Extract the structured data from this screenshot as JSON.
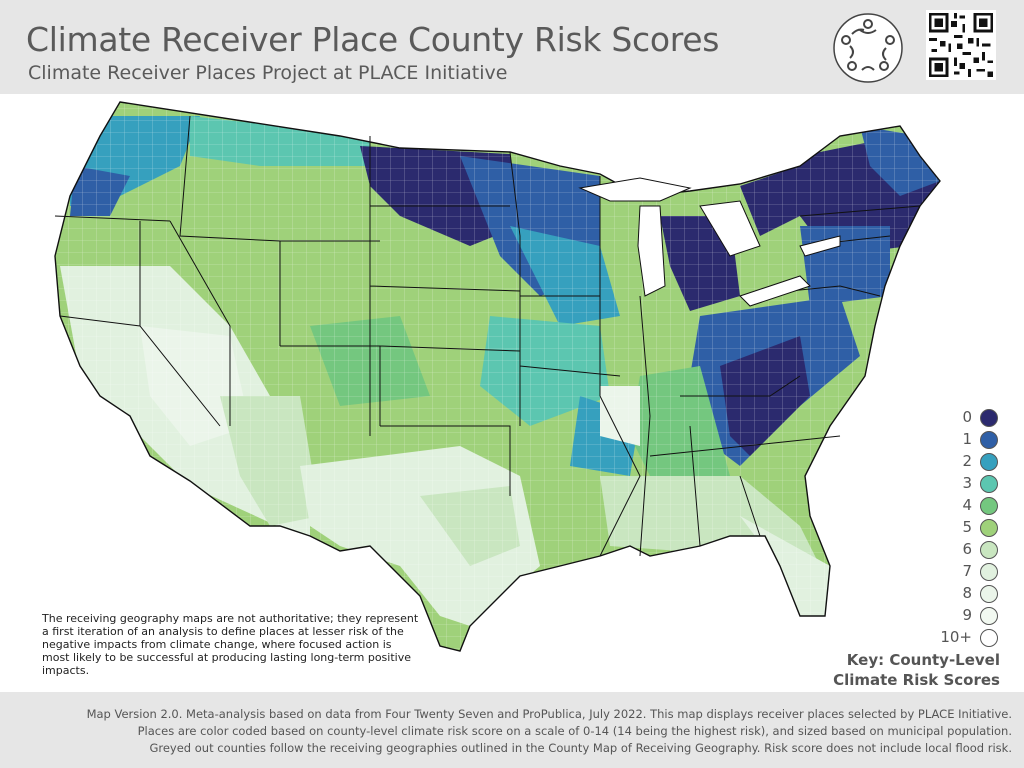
{
  "header": {
    "title": "Climate Receiver Place County Risk Scores",
    "subtitle": "Climate Receiver Places Project at PLACE Initiative"
  },
  "icons": {
    "logo": "place-initiative-logo-icon",
    "qr": "qr-code-icon"
  },
  "note": "The receiving geography maps are not authoritative; they represent a first iteration of an analysis to define places at lesser risk of the negative impacts from climate change, where focused action is most likely to be successful at producing lasting long-term positive impacts.",
  "legend": {
    "title_line1": "Key: County-Level",
    "title_line2": "Climate Risk Scores",
    "items": [
      {
        "label": "0",
        "color": "#2b2a6e"
      },
      {
        "label": "1",
        "color": "#2f5fa6"
      },
      {
        "label": "2",
        "color": "#36a0be"
      },
      {
        "label": "3",
        "color": "#5cc6b0"
      },
      {
        "label": "4",
        "color": "#74c77f"
      },
      {
        "label": "5",
        "color": "#9fd17a"
      },
      {
        "label": "6",
        "color": "#c9e6c0"
      },
      {
        "label": "7",
        "color": "#e1f1df"
      },
      {
        "label": "8",
        "color": "#ebf5ea"
      },
      {
        "label": "9",
        "color": "#f2f9f1"
      },
      {
        "label": "10+",
        "color": "#ffffff"
      }
    ]
  },
  "footer": {
    "line1": "Map Version 2.0. Meta-analysis based on data from Four Twenty Seven and ProPublica, July 2022. This map displays receiver places selected by PLACE Initiative.",
    "line2": "Places are color coded based on county-level climate risk score on a scale of 0-14 (14 being the highest risk), and sized based on municipal population.",
    "line3": "Greyed out counties follow the receiving geographies outlined in the County Map of Receiving Geography. Risk score does not include local flood risk."
  }
}
